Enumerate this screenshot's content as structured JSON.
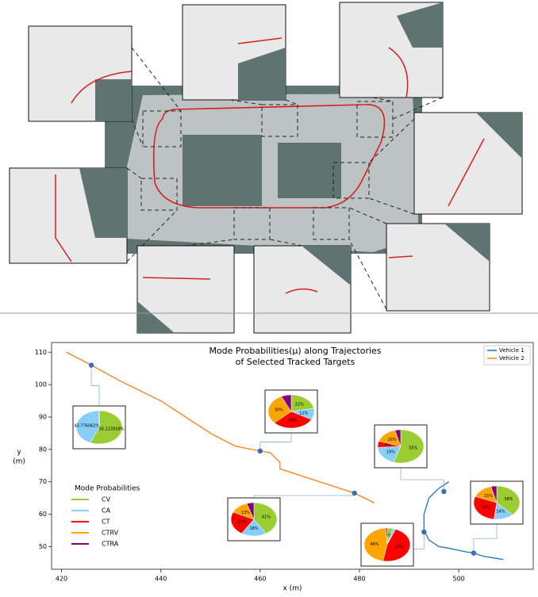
{
  "chart_data": {
    "type": "line",
    "title": [
      "Mode Probabilities(μ) along Trajectories",
      "of Selected Tracked Targets"
    ],
    "xlabel": "x (m)",
    "ylabel": [
      "y",
      "(m)"
    ],
    "xlim": [
      418,
      515
    ],
    "ylim": [
      43,
      113
    ],
    "xticks": [
      420,
      440,
      460,
      480,
      500
    ],
    "yticks": [
      50,
      60,
      70,
      80,
      90,
      100,
      110
    ],
    "series": [
      {
        "name": "Vehicle 1",
        "color": "#1f77b4",
        "x": [
          498,
          496,
          494,
          493,
          493,
          494,
          496,
          498,
          501,
          503,
          505,
          507,
          509
        ],
        "values": [
          70,
          68,
          65,
          60,
          55,
          52,
          50,
          49.5,
          48.5,
          48,
          47,
          46.5,
          46
        ]
      },
      {
        "name": "Vehicle 2",
        "color": "#ff7f0e",
        "x": [
          421,
          426,
          432,
          440,
          446,
          450,
          455,
          460,
          462,
          464,
          464,
          470,
          476,
          479,
          483
        ],
        "values": [
          110,
          106,
          101,
          95,
          89,
          85,
          81,
          79.5,
          79,
          76,
          74,
          71,
          68,
          66.5,
          63.5
        ]
      }
    ],
    "pie_legend": {
      "title": "Mode Probabilities",
      "categories": [
        "CV",
        "CA",
        "CT",
        "CTRV",
        "CTRA"
      ],
      "colors": [
        "#9acd32",
        "#87cefa",
        "#ff0000",
        "#ffa500",
        "#800080"
      ]
    },
    "pies": [
      {
        "x": 426,
        "y": 106,
        "values": [
          56.223938,
          43.776062,
          0,
          0,
          0
        ],
        "value_labels": [
          "56.223938%",
          "43.776062%",
          null,
          null,
          null
        ]
      },
      {
        "x": 460,
        "y": 79.5,
        "values": [
          22,
          11,
          30,
          30,
          7
        ],
        "value_labels": [
          "22%",
          "11%",
          "30%",
          "30%",
          null
        ]
      },
      {
        "x": 479,
        "y": 66.5,
        "values": [
          41,
          18,
          23,
          13,
          5
        ],
        "value_labels": [
          "41%",
          "18%",
          "23%",
          "13%",
          null
        ]
      },
      {
        "x": 497,
        "y": 67,
        "values": [
          55,
          19,
          6,
          16,
          4
        ],
        "value_labels": [
          "55%",
          "19%",
          "6%",
          "16%",
          null
        ]
      },
      {
        "x": 493,
        "y": 54.5,
        "values": [
          4,
          2,
          47,
          46,
          1
        ],
        "value_labels": [
          "4%",
          null,
          "47%",
          "46%",
          null
        ]
      },
      {
        "x": 503,
        "y": 48,
        "values": [
          38,
          14,
          29,
          15,
          4
        ],
        "value_labels": [
          "38%",
          "14%",
          "29%",
          "15%",
          null
        ]
      }
    ]
  }
}
